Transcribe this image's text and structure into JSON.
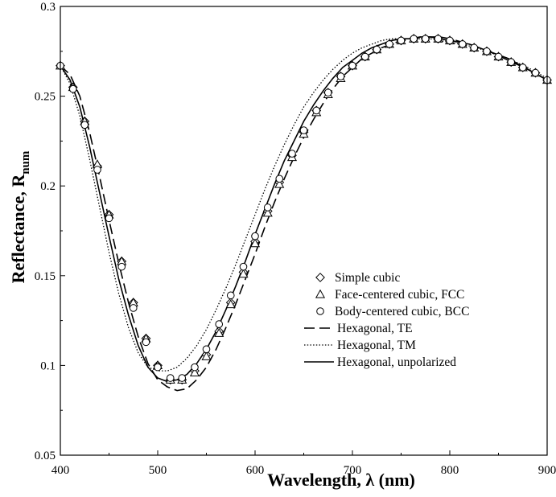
{
  "chart_data": {
    "type": "line",
    "title": "",
    "xlabel": "Wavelength, λ (nm)",
    "ylabel": "Reflectance, R",
    "ylabel_subscript": "num",
    "xlim": [
      400,
      900
    ],
    "ylim": [
      0.05,
      0.3
    ],
    "xticks": [
      400,
      500,
      600,
      700,
      800,
      900
    ],
    "yticks": [
      0.05,
      0.1,
      0.15,
      0.2,
      0.25,
      0.3
    ],
    "xtick_labels": [
      "400",
      "500",
      "600",
      "700",
      "800",
      "900"
    ],
    "ytick_labels": [
      "0.05",
      "0.1",
      "0.15",
      "0.2",
      "0.25",
      "0.3"
    ],
    "grid": false,
    "legend_position": "lower-right",
    "series": [
      {
        "name": "Simple cubic",
        "style": "markers",
        "marker": "diamond",
        "x": [
          400,
          413,
          425,
          438,
          450,
          463,
          475,
          488,
          500,
          513,
          525,
          538,
          550,
          563,
          575,
          588,
          600,
          613,
          625,
          638,
          650,
          663,
          675,
          688,
          700,
          713,
          725,
          738,
          750,
          763,
          775,
          788,
          800,
          813,
          825,
          838,
          850,
          863,
          875,
          888,
          900
        ],
        "y": [
          0.267,
          0.255,
          0.236,
          0.211,
          0.184,
          0.158,
          0.135,
          0.115,
          0.1,
          0.092,
          0.092,
          0.097,
          0.106,
          0.119,
          0.135,
          0.152,
          0.169,
          0.186,
          0.202,
          0.217,
          0.23,
          0.242,
          0.252,
          0.261,
          0.267,
          0.272,
          0.276,
          0.279,
          0.281,
          0.282,
          0.282,
          0.282,
          0.281,
          0.279,
          0.277,
          0.275,
          0.272,
          0.269,
          0.266,
          0.263,
          0.259
        ]
      },
      {
        "name": "Face-centered cubic, FCC",
        "style": "markers",
        "marker": "triangle",
        "x": [
          400,
          413,
          425,
          438,
          450,
          463,
          475,
          488,
          500,
          513,
          525,
          538,
          550,
          563,
          575,
          588,
          600,
          613,
          625,
          638,
          650,
          663,
          675,
          688,
          700,
          713,
          725,
          738,
          750,
          763,
          775,
          788,
          800,
          813,
          825,
          838,
          850,
          863,
          875,
          888,
          900
        ],
        "y": [
          0.267,
          0.255,
          0.236,
          0.212,
          0.184,
          0.158,
          0.135,
          0.115,
          0.1,
          0.092,
          0.092,
          0.096,
          0.105,
          0.118,
          0.134,
          0.151,
          0.168,
          0.185,
          0.201,
          0.216,
          0.229,
          0.241,
          0.251,
          0.26,
          0.267,
          0.272,
          0.276,
          0.279,
          0.281,
          0.282,
          0.282,
          0.282,
          0.281,
          0.279,
          0.277,
          0.275,
          0.272,
          0.269,
          0.266,
          0.263,
          0.259
        ]
      },
      {
        "name": "Body-centered cubic, BCC",
        "style": "markers",
        "marker": "circle",
        "x": [
          400,
          413,
          425,
          438,
          450,
          463,
          475,
          488,
          500,
          513,
          525,
          538,
          550,
          563,
          575,
          588,
          600,
          613,
          625,
          638,
          650,
          663,
          675,
          688,
          700,
          713,
          725,
          738,
          750,
          763,
          775,
          788,
          800,
          813,
          825,
          838,
          850,
          863,
          875,
          888,
          900
        ],
        "y": [
          0.267,
          0.254,
          0.234,
          0.209,
          0.182,
          0.155,
          0.132,
          0.113,
          0.099,
          0.093,
          0.093,
          0.099,
          0.109,
          0.123,
          0.139,
          0.155,
          0.172,
          0.188,
          0.204,
          0.218,
          0.231,
          0.242,
          0.252,
          0.261,
          0.267,
          0.272,
          0.276,
          0.279,
          0.281,
          0.282,
          0.282,
          0.282,
          0.281,
          0.279,
          0.277,
          0.275,
          0.272,
          0.269,
          0.266,
          0.263,
          0.259
        ]
      },
      {
        "name": "Hexagonal, TE",
        "style": "dashed",
        "x": [
          400,
          410,
          420,
          430,
          440,
          450,
          460,
          470,
          480,
          490,
          500,
          510,
          520,
          530,
          540,
          550,
          560,
          570,
          580,
          590,
          600,
          610,
          620,
          630,
          640,
          650,
          660,
          670,
          680,
          690,
          700,
          710,
          720,
          730,
          740,
          750,
          760,
          770,
          780,
          790,
          800,
          820,
          840,
          860,
          880,
          900
        ],
        "y": [
          0.267,
          0.262,
          0.25,
          0.23,
          0.206,
          0.181,
          0.157,
          0.135,
          0.116,
          0.101,
          0.092,
          0.088,
          0.086,
          0.087,
          0.092,
          0.099,
          0.109,
          0.121,
          0.134,
          0.148,
          0.162,
          0.177,
          0.191,
          0.204,
          0.216,
          0.227,
          0.237,
          0.246,
          0.254,
          0.261,
          0.266,
          0.271,
          0.274,
          0.277,
          0.279,
          0.281,
          0.282,
          0.283,
          0.283,
          0.283,
          0.282,
          0.279,
          0.275,
          0.27,
          0.265,
          0.259
        ]
      },
      {
        "name": "Hexagonal, TM",
        "style": "dotted",
        "x": [
          400,
          410,
          420,
          430,
          440,
          450,
          460,
          470,
          480,
          490,
          500,
          510,
          520,
          530,
          540,
          550,
          560,
          570,
          580,
          590,
          600,
          610,
          620,
          630,
          640,
          650,
          660,
          670,
          680,
          690,
          700,
          710,
          720,
          730,
          740,
          750,
          760,
          770,
          780,
          790,
          800,
          820,
          840,
          860,
          880,
          900
        ],
        "y": [
          0.267,
          0.257,
          0.239,
          0.215,
          0.189,
          0.163,
          0.14,
          0.121,
          0.107,
          0.099,
          0.097,
          0.097,
          0.099,
          0.104,
          0.111,
          0.12,
          0.131,
          0.143,
          0.156,
          0.17,
          0.184,
          0.198,
          0.211,
          0.223,
          0.234,
          0.244,
          0.252,
          0.259,
          0.265,
          0.27,
          0.274,
          0.277,
          0.279,
          0.281,
          0.282,
          0.282,
          0.282,
          0.282,
          0.282,
          0.281,
          0.28,
          0.278,
          0.275,
          0.271,
          0.266,
          0.26
        ]
      },
      {
        "name": "Hexagonal, unpolarized",
        "style": "solid",
        "x": [
          400,
          410,
          420,
          430,
          440,
          450,
          460,
          470,
          480,
          490,
          500,
          510,
          520,
          530,
          540,
          550,
          560,
          570,
          580,
          590,
          600,
          610,
          620,
          630,
          640,
          650,
          660,
          670,
          680,
          690,
          700,
          710,
          720,
          730,
          740,
          750,
          760,
          770,
          780,
          790,
          800,
          820,
          840,
          860,
          880,
          900
        ],
        "y": [
          0.267,
          0.259,
          0.244,
          0.222,
          0.197,
          0.172,
          0.148,
          0.128,
          0.111,
          0.099,
          0.093,
          0.091,
          0.092,
          0.095,
          0.101,
          0.109,
          0.119,
          0.131,
          0.144,
          0.158,
          0.173,
          0.187,
          0.201,
          0.214,
          0.225,
          0.236,
          0.245,
          0.253,
          0.26,
          0.266,
          0.27,
          0.274,
          0.277,
          0.279,
          0.281,
          0.282,
          0.282,
          0.283,
          0.283,
          0.282,
          0.281,
          0.279,
          0.275,
          0.271,
          0.265,
          0.259
        ]
      }
    ]
  }
}
